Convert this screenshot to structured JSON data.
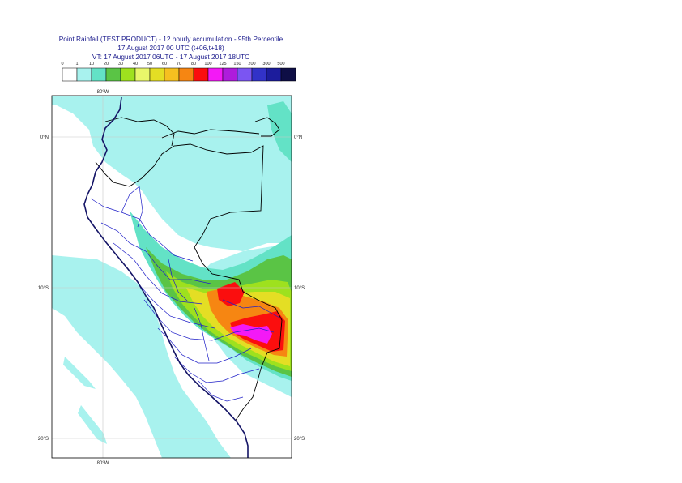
{
  "header": {
    "title_line1": "Point Rainfall (TEST PRODUCT) - 12 hourly accumulation - 95th Percentile",
    "title_line2": "17 August 2017 00 UTC (t+06,t+18)",
    "title_line3": "VT: 17 August 2017 06UTC - 17 August 2017 18UTC"
  },
  "legend": {
    "thresholds": [
      "0",
      "1",
      "10",
      "20",
      "30",
      "40",
      "50",
      "60",
      "70",
      "80",
      "100",
      "125",
      "150",
      "200",
      "300",
      "500"
    ],
    "colors": [
      "#ffffff",
      "#a8f2ee",
      "#63e2c6",
      "#5ac445",
      "#9ee11e",
      "#e8f66a",
      "#e4de24",
      "#f6c020",
      "#f68612",
      "#fb0e0e",
      "#f319f6",
      "#ae1cdc",
      "#7b55f2",
      "#3232c8",
      "#1c1c9c",
      "#0e0e46"
    ]
  },
  "map": {
    "lon_labels": [
      "80°W",
      "80°W"
    ],
    "lat_labels": [
      "0°N",
      "10°S",
      "20°S"
    ],
    "lat_labels_right": [
      "0°N",
      "10°S",
      "20°S"
    ],
    "colors": {
      "light_cyan": "#a8f2ee",
      "teal": "#63e2c6",
      "green": "#5ac445",
      "lime": "#9ee11e",
      "yellow": "#e4de24",
      "orange": "#f68612",
      "red": "#fb0e0e",
      "magenta": "#f319f6",
      "coast": "#141466",
      "admin": "#2020c8",
      "border": "#000000",
      "grid": "#c8c8c8"
    }
  }
}
